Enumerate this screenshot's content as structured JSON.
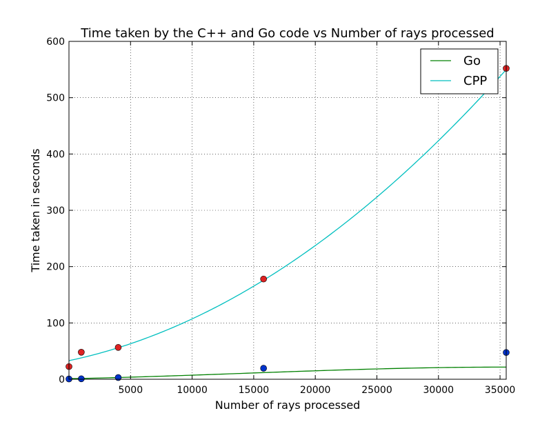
{
  "chart_data": {
    "type": "line",
    "title": "Time taken by the C++ and Go code vs Number of rays processed",
    "xlabel": "Number of rays processed",
    "ylabel": "Time taken in seconds",
    "xlim": [
      0,
      35500
    ],
    "ylim": [
      0,
      600
    ],
    "xticks": [
      5000,
      10000,
      15000,
      20000,
      25000,
      30000,
      35000
    ],
    "yticks": [
      0,
      100,
      200,
      300,
      400,
      500,
      600
    ],
    "grid": true,
    "legend_position": "top-right",
    "series": [
      {
        "name": "Go",
        "line_color": "#008000",
        "marker_color": "#0033cc",
        "points": [
          [
            0,
            0.5
          ],
          [
            1000,
            0.8
          ],
          [
            4000,
            3.0
          ],
          [
            15800,
            19.5
          ],
          [
            35500,
            47.5
          ]
        ],
        "fit": {
          "a": 1.0,
          "b": 0.00043,
          "c": 2.55e-08,
          "d": -6e-13
        }
      },
      {
        "name": "CPP",
        "line_color": "#00bfbf",
        "marker_color": "#dd2222",
        "points": [
          [
            0,
            22.5
          ],
          [
            1000,
            48.0
          ],
          [
            4000,
            56.5
          ],
          [
            15800,
            178.0
          ],
          [
            35500,
            552.0
          ]
        ],
        "fit": {
          "a": 33.0,
          "b": 0.00462,
          "c": 2.8e-07,
          "d": 0
        }
      }
    ]
  }
}
